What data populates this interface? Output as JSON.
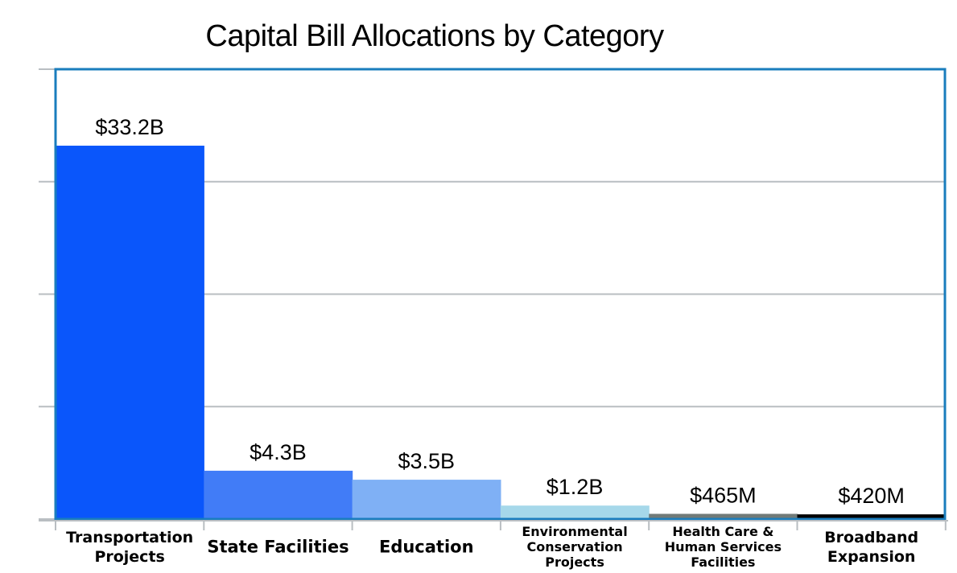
{
  "chart_data": {
    "type": "bar",
    "title": "Capital Bill Allocations by Category",
    "xlabel": "",
    "ylabel": "",
    "ylim": [
      0,
      40
    ],
    "grid": true,
    "categories": [
      "Transportation Projects",
      "State Facilities",
      "Education",
      "Environmental Conservation Projects",
      "Health Care & Human Services Facilities",
      "Broadband Expansion"
    ],
    "category_label_lines": [
      [
        "Transportation",
        "Projects"
      ],
      [
        "State Facilities"
      ],
      [
        "Education"
      ],
      [
        "Environmental",
        "Conservation",
        "Projects"
      ],
      [
        "Health Care &",
        "Human Services",
        "Facilities"
      ],
      [
        "Broadband",
        "Expansion"
      ]
    ],
    "values": [
      33.2,
      4.3,
      3.5,
      1.2,
      0.465,
      0.42
    ],
    "data_labels": [
      "$33.2B",
      "$4.3B",
      "$3.5B",
      "$1.2B",
      "$465M",
      "$420M"
    ],
    "colors": [
      "#0a56fb",
      "#417cf7",
      "#7fb0f5",
      "#a6d8ea",
      "#717a78",
      "#000000"
    ],
    "gridline_color": "#b9bec2",
    "frame_color": "#1a7dbd"
  }
}
